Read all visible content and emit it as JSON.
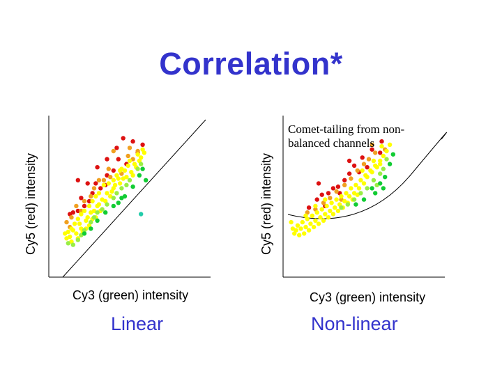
{
  "slide": {
    "title": "Correlation*"
  },
  "colors": {
    "title": "#3333cc",
    "red": "#dd1111",
    "orange": "#f0a020",
    "yellow": "#ffff00",
    "lightgreen": "#99ee44",
    "green": "#11cc33",
    "teal": "#22ccaa"
  },
  "chart_data": [
    {
      "type": "scatter",
      "title": "",
      "xlabel": "Cy3 (green) intensity",
      "ylabel": "Cy5 (red) intensity",
      "caption": "Linear",
      "annotation": "",
      "xlim": [
        0,
        1
      ],
      "ylim": [
        0,
        1
      ],
      "reference_line": "straight diagonal",
      "grid": false,
      "series": [
        {
          "color": "red",
          "points": [
            [
              0.46,
              0.86
            ],
            [
              0.42,
              0.8
            ],
            [
              0.52,
              0.84
            ],
            [
              0.58,
              0.82
            ],
            [
              0.55,
              0.77
            ],
            [
              0.43,
              0.73
            ],
            [
              0.36,
              0.73
            ],
            [
              0.3,
              0.68
            ],
            [
              0.36,
              0.63
            ],
            [
              0.29,
              0.58
            ],
            [
              0.24,
              0.58
            ],
            [
              0.18,
              0.6
            ],
            [
              0.2,
              0.49
            ],
            [
              0.27,
              0.52
            ],
            [
              0.25,
              0.47
            ],
            [
              0.22,
              0.44
            ],
            [
              0.18,
              0.41
            ],
            [
              0.15,
              0.4
            ],
            [
              0.13,
              0.39
            ],
            [
              0.48,
              0.7
            ],
            [
              0.4,
              0.66
            ],
            [
              0.35,
              0.57
            ],
            [
              0.32,
              0.55
            ]
          ]
        },
        {
          "color": "orange",
          "points": [
            [
              0.4,
              0.78
            ],
            [
              0.49,
              0.75
            ],
            [
              0.55,
              0.78
            ],
            [
              0.52,
              0.73
            ],
            [
              0.45,
              0.64
            ],
            [
              0.38,
              0.62
            ],
            [
              0.34,
              0.6
            ],
            [
              0.28,
              0.55
            ],
            [
              0.26,
              0.5
            ],
            [
              0.22,
              0.47
            ],
            [
              0.17,
              0.44
            ],
            [
              0.14,
              0.37
            ],
            [
              0.11,
              0.34
            ],
            [
              0.13,
              0.31
            ],
            [
              0.2,
              0.41
            ],
            [
              0.31,
              0.6
            ],
            [
              0.37,
              0.67
            ],
            [
              0.5,
              0.8
            ]
          ]
        },
        {
          "color": "yellow",
          "points": [
            [
              0.58,
              0.79
            ],
            [
              0.55,
              0.76
            ],
            [
              0.53,
              0.7
            ],
            [
              0.5,
              0.72
            ],
            [
              0.47,
              0.66
            ],
            [
              0.44,
              0.66
            ],
            [
              0.42,
              0.63
            ],
            [
              0.4,
              0.6
            ],
            [
              0.37,
              0.58
            ],
            [
              0.34,
              0.57
            ],
            [
              0.31,
              0.52
            ],
            [
              0.29,
              0.5
            ],
            [
              0.27,
              0.47
            ],
            [
              0.25,
              0.44
            ],
            [
              0.22,
              0.41
            ],
            [
              0.2,
              0.39
            ],
            [
              0.18,
              0.36
            ],
            [
              0.16,
              0.33
            ],
            [
              0.14,
              0.3
            ],
            [
              0.12,
              0.28
            ],
            [
              0.1,
              0.27
            ],
            [
              0.13,
              0.25
            ],
            [
              0.17,
              0.27
            ],
            [
              0.2,
              0.3
            ],
            [
              0.23,
              0.35
            ],
            [
              0.26,
              0.4
            ],
            [
              0.3,
              0.44
            ],
            [
              0.33,
              0.48
            ],
            [
              0.36,
              0.52
            ],
            [
              0.4,
              0.55
            ],
            [
              0.44,
              0.58
            ],
            [
              0.48,
              0.62
            ],
            [
              0.51,
              0.65
            ],
            [
              0.54,
              0.68
            ],
            [
              0.56,
              0.72
            ],
            [
              0.49,
              0.69
            ],
            [
              0.46,
              0.61
            ],
            [
              0.41,
              0.57
            ],
            [
              0.38,
              0.5
            ],
            [
              0.35,
              0.47
            ],
            [
              0.28,
              0.41
            ],
            [
              0.24,
              0.37
            ],
            [
              0.19,
              0.33
            ],
            [
              0.15,
              0.29
            ],
            [
              0.11,
              0.24
            ],
            [
              0.14,
              0.22
            ],
            [
              0.18,
              0.24
            ],
            [
              0.21,
              0.28
            ],
            [
              0.25,
              0.32
            ],
            [
              0.29,
              0.37
            ],
            [
              0.32,
              0.41
            ],
            [
              0.43,
              0.61
            ],
            [
              0.45,
              0.67
            ],
            [
              0.52,
              0.63
            ],
            [
              0.57,
              0.74
            ],
            [
              0.59,
              0.77
            ],
            [
              0.23,
              0.3
            ],
            [
              0.27,
              0.36
            ],
            [
              0.31,
              0.45
            ],
            [
              0.39,
              0.53
            ]
          ]
        },
        {
          "color": "lightgreen",
          "points": [
            [
              0.55,
              0.67
            ],
            [
              0.5,
              0.6
            ],
            [
              0.45,
              0.55
            ],
            [
              0.4,
              0.49
            ],
            [
              0.36,
              0.45
            ],
            [
              0.3,
              0.4
            ],
            [
              0.26,
              0.34
            ],
            [
              0.22,
              0.29
            ],
            [
              0.18,
              0.23
            ],
            [
              0.15,
              0.2
            ],
            [
              0.12,
              0.21
            ],
            [
              0.48,
              0.57
            ],
            [
              0.42,
              0.52
            ],
            [
              0.33,
              0.42
            ],
            [
              0.28,
              0.37
            ],
            [
              0.2,
              0.26
            ],
            [
              0.57,
              0.7
            ]
          ]
        },
        {
          "color": "green",
          "points": [
            [
              0.6,
              0.6
            ],
            [
              0.58,
              0.67
            ],
            [
              0.52,
              0.56
            ],
            [
              0.47,
              0.5
            ],
            [
              0.43,
              0.46
            ],
            [
              0.4,
              0.44
            ],
            [
              0.35,
              0.4
            ],
            [
              0.3,
              0.35
            ],
            [
              0.26,
              0.3
            ],
            [
              0.22,
              0.27
            ],
            [
              0.45,
              0.49
            ],
            [
              0.56,
              0.63
            ]
          ]
        },
        {
          "color": "teal",
          "points": [
            [
              0.57,
              0.39
            ]
          ]
        }
      ]
    },
    {
      "type": "scatter",
      "title": "",
      "xlabel": "Cy3 (green) intensity",
      "ylabel": "Cy5 (red) intensity",
      "caption": "Non-linear",
      "annotation": "Comet-tailing from non-balanced channels",
      "xlim": [
        0,
        1
      ],
      "ylim": [
        0,
        1
      ],
      "reference_line": "curved",
      "grid": false,
      "series": [
        {
          "color": "red",
          "points": [
            [
              0.61,
              0.84
            ],
            [
              0.55,
              0.79
            ],
            [
              0.49,
              0.74
            ],
            [
              0.47,
              0.65
            ],
            [
              0.44,
              0.69
            ],
            [
              0.41,
              0.64
            ],
            [
              0.38,
              0.6
            ],
            [
              0.34,
              0.56
            ],
            [
              0.31,
              0.55
            ],
            [
              0.28,
              0.52
            ],
            [
              0.24,
              0.51
            ],
            [
              0.21,
              0.48
            ],
            [
              0.16,
              0.43
            ],
            [
              0.26,
              0.44
            ],
            [
              0.22,
              0.58
            ],
            [
              0.41,
              0.72
            ],
            [
              0.52,
              0.68
            ],
            [
              0.6,
              0.77
            ],
            [
              0.35,
              0.52
            ]
          ]
        },
        {
          "color": "orange",
          "points": [
            [
              0.57,
              0.77
            ],
            [
              0.53,
              0.73
            ],
            [
              0.5,
              0.7
            ],
            [
              0.46,
              0.66
            ],
            [
              0.42,
              0.61
            ],
            [
              0.38,
              0.57
            ],
            [
              0.33,
              0.53
            ],
            [
              0.29,
              0.49
            ],
            [
              0.25,
              0.46
            ],
            [
              0.2,
              0.42
            ],
            [
              0.15,
              0.4
            ],
            [
              0.55,
              0.82
            ],
            [
              0.63,
              0.79
            ],
            [
              0.36,
              0.48
            ]
          ]
        },
        {
          "color": "yellow",
          "points": [
            [
              0.62,
              0.75
            ],
            [
              0.6,
              0.7
            ],
            [
              0.58,
              0.68
            ],
            [
              0.55,
              0.65
            ],
            [
              0.52,
              0.62
            ],
            [
              0.5,
              0.58
            ],
            [
              0.47,
              0.55
            ],
            [
              0.44,
              0.52
            ],
            [
              0.41,
              0.5
            ],
            [
              0.38,
              0.47
            ],
            [
              0.35,
              0.45
            ],
            [
              0.32,
              0.43
            ],
            [
              0.29,
              0.41
            ],
            [
              0.26,
              0.39
            ],
            [
              0.23,
              0.37
            ],
            [
              0.2,
              0.35
            ],
            [
              0.17,
              0.33
            ],
            [
              0.14,
              0.31
            ],
            [
              0.11,
              0.3
            ],
            [
              0.08,
              0.29
            ],
            [
              0.06,
              0.3
            ],
            [
              0.09,
              0.32
            ],
            [
              0.12,
              0.34
            ],
            [
              0.15,
              0.36
            ],
            [
              0.18,
              0.38
            ],
            [
              0.21,
              0.4
            ],
            [
              0.24,
              0.42
            ],
            [
              0.27,
              0.44
            ],
            [
              0.3,
              0.46
            ],
            [
              0.33,
              0.48
            ],
            [
              0.36,
              0.5
            ],
            [
              0.39,
              0.52
            ],
            [
              0.42,
              0.55
            ],
            [
              0.45,
              0.57
            ],
            [
              0.48,
              0.6
            ],
            [
              0.51,
              0.63
            ],
            [
              0.54,
              0.66
            ],
            [
              0.57,
              0.69
            ],
            [
              0.6,
              0.72
            ],
            [
              0.64,
              0.78
            ],
            [
              0.66,
              0.82
            ],
            [
              0.1,
              0.26
            ],
            [
              0.13,
              0.27
            ],
            [
              0.16,
              0.29
            ],
            [
              0.19,
              0.31
            ],
            [
              0.22,
              0.33
            ],
            [
              0.25,
              0.35
            ],
            [
              0.28,
              0.37
            ],
            [
              0.31,
              0.39
            ],
            [
              0.34,
              0.41
            ],
            [
              0.37,
              0.43
            ],
            [
              0.4,
              0.46
            ],
            [
              0.43,
              0.48
            ],
            [
              0.46,
              0.51
            ],
            [
              0.05,
              0.34
            ],
            [
              0.07,
              0.27
            ],
            [
              0.2,
              0.44
            ],
            [
              0.26,
              0.48
            ],
            [
              0.14,
              0.38
            ],
            [
              0.56,
              0.72
            ],
            [
              0.61,
              0.81
            ],
            [
              0.49,
              0.66
            ]
          ]
        },
        {
          "color": "lightgreen",
          "points": [
            [
              0.6,
              0.64
            ],
            [
              0.56,
              0.6
            ],
            [
              0.52,
              0.55
            ],
            [
              0.48,
              0.52
            ],
            [
              0.44,
              0.48
            ],
            [
              0.4,
              0.45
            ],
            [
              0.36,
              0.43
            ],
            [
              0.58,
              0.57
            ],
            [
              0.62,
              0.67
            ],
            [
              0.64,
              0.73
            ]
          ]
        },
        {
          "color": "green",
          "points": [
            [
              0.66,
              0.7
            ],
            [
              0.63,
              0.62
            ],
            [
              0.6,
              0.58
            ],
            [
              0.55,
              0.55
            ],
            [
              0.5,
              0.48
            ],
            [
              0.45,
              0.45
            ],
            [
              0.68,
              0.76
            ],
            [
              0.57,
              0.52
            ],
            [
              0.62,
              0.55
            ]
          ]
        }
      ]
    }
  ]
}
